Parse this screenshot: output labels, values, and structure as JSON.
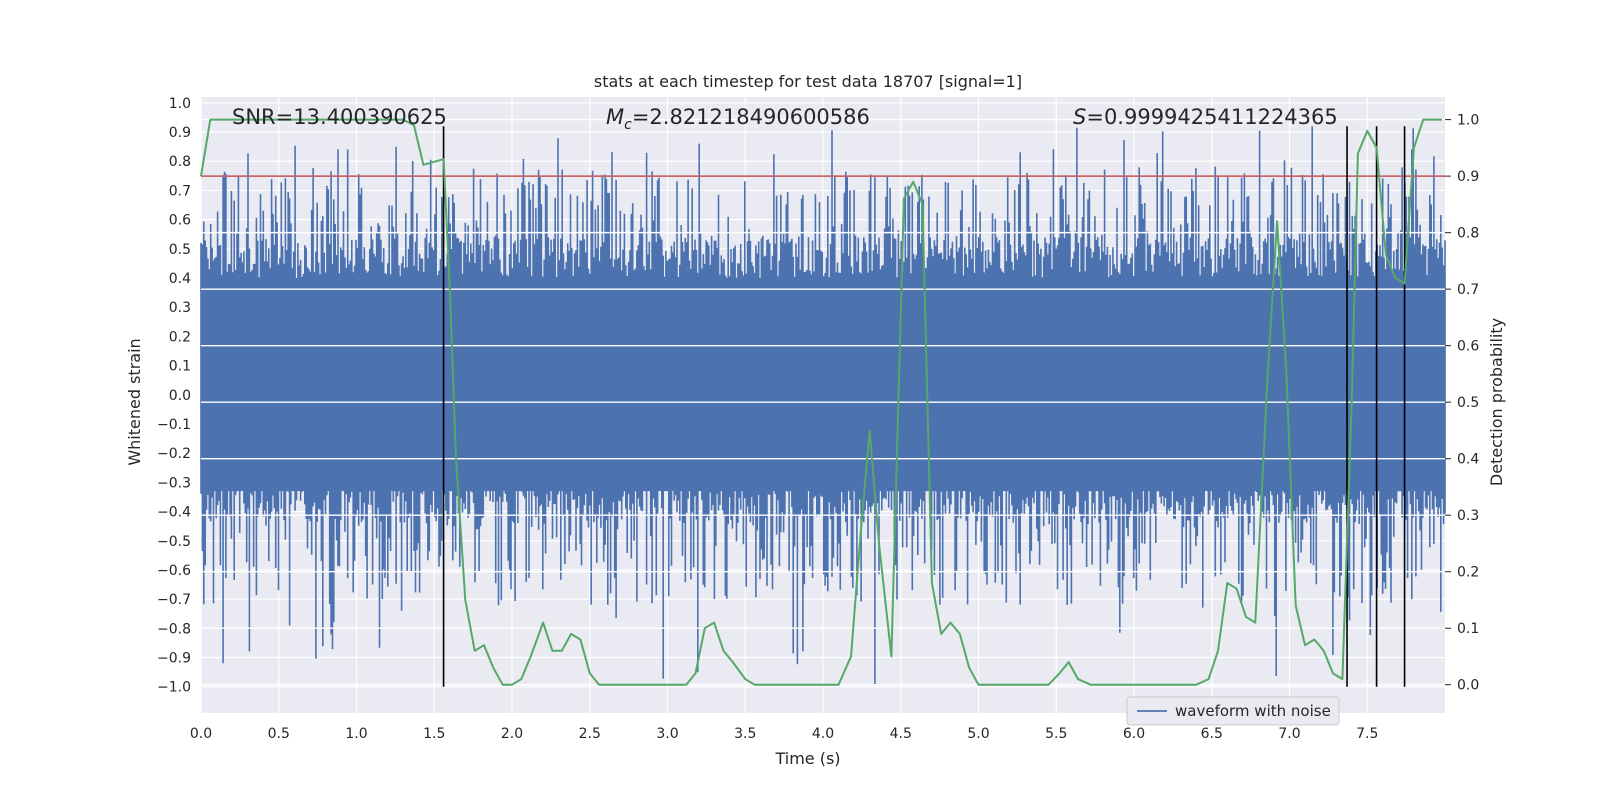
{
  "chart_data": {
    "type": "line",
    "title": "stats at each timestep for test data 18707 [signal=1]",
    "xlabel": "Time (s)",
    "ylabel_left": "Whitened strain",
    "ylabel_right": "Detection probability",
    "xlim": [
      0.0,
      8.0
    ],
    "ylim_left": [
      -1.09,
      1.02
    ],
    "ylim_right": [
      -0.05,
      1.04
    ],
    "x_ticks": [
      0.0,
      0.5,
      1.0,
      1.5,
      2.0,
      2.5,
      3.0,
      3.5,
      4.0,
      4.5,
      5.0,
      5.5,
      6.0,
      6.5,
      7.0,
      7.5
    ],
    "x_tick_labels": [
      "0.0",
      "0.5",
      "1.0",
      "1.5",
      "2.0",
      "2.5",
      "3.0",
      "3.5",
      "4.0",
      "4.5",
      "5.0",
      "5.5",
      "6.0",
      "6.5",
      "7.0",
      "7.5"
    ],
    "y_left_ticks": [
      -1.0,
      -0.9,
      -0.8,
      -0.7,
      -0.6,
      -0.5,
      -0.4,
      -0.3,
      -0.2,
      -0.1,
      0.0,
      0.1,
      0.2,
      0.3,
      0.4,
      0.5,
      0.6,
      0.7,
      0.8,
      0.9,
      1.0
    ],
    "y_left_tick_labels": [
      "−1.0",
      "−0.9",
      "−0.8",
      "−0.7",
      "−0.6",
      "−0.5",
      "−0.4",
      "−0.3",
      "−0.2",
      "−0.1",
      "0.0",
      "0.1",
      "0.2",
      "0.3",
      "0.4",
      "0.5",
      "0.6",
      "0.7",
      "0.8",
      "0.9",
      "1.0"
    ],
    "y_right_ticks": [
      0.0,
      0.1,
      0.2,
      0.3,
      0.4,
      0.5,
      0.6,
      0.7,
      0.8,
      0.9,
      1.0
    ],
    "y_right_tick_labels": [
      "0.0",
      "0.1",
      "0.2",
      "0.3",
      "0.4",
      "0.5",
      "0.6",
      "0.7",
      "0.8",
      "0.9",
      "1.0"
    ],
    "grid": true,
    "legend": {
      "entries": [
        "waveform with noise"
      ],
      "placement": "lower-right"
    },
    "annotations": {
      "snr_label": "SNR=13.400390625",
      "mc_symbol": "M",
      "mc_subscript": "c",
      "mc_value": "=2.821218490600586",
      "s_symbol": "S",
      "s_value": "=0.9999425411224365"
    },
    "threshold_right": 0.9,
    "vertical_markers_x": [
      1.56,
      7.37,
      7.56,
      7.74
    ],
    "vertical_markers_range_left": [
      -1.0,
      0.92
    ],
    "series": [
      {
        "name": "waveform with noise",
        "axis": "left",
        "color": "#4c72b0",
        "kind": "noise-band",
        "band_limits": [
          -0.42,
          0.52
        ],
        "x_range": [
          0.0,
          8.0
        ],
        "n_samples": 900,
        "spike_range": [
          -1.0,
          0.92
        ]
      },
      {
        "axis": "right",
        "color": "#55a868",
        "x": [
          0.0,
          0.06,
          0.3,
          0.6,
          0.9,
          1.2,
          1.3,
          1.37,
          1.43,
          1.56,
          1.6,
          1.64,
          1.7,
          1.76,
          1.82,
          1.88,
          1.94,
          2.0,
          2.06,
          2.12,
          2.2,
          2.26,
          2.32,
          2.38,
          2.44,
          2.5,
          2.56,
          2.65,
          2.8,
          3.0,
          3.12,
          3.18,
          3.24,
          3.3,
          3.36,
          3.42,
          3.5,
          3.56,
          3.64,
          3.72,
          3.8,
          3.9,
          4.0,
          4.1,
          4.18,
          4.24,
          4.3,
          4.36,
          4.44,
          4.52,
          4.58,
          4.64,
          4.7,
          4.76,
          4.82,
          4.88,
          4.94,
          5.0,
          5.1,
          5.3,
          5.45,
          5.52,
          5.58,
          5.64,
          5.72,
          5.8,
          5.9,
          6.2,
          6.4,
          6.48,
          6.54,
          6.6,
          6.66,
          6.72,
          6.78,
          6.86,
          6.92,
          6.98,
          7.04,
          7.1,
          7.16,
          7.22,
          7.28,
          7.34,
          7.4,
          7.44,
          7.5,
          7.56,
          7.62,
          7.68,
          7.74,
          7.8,
          7.86,
          7.92,
          7.98
        ],
        "y": [
          0.9,
          1.0,
          1.0,
          1.0,
          1.0,
          1.0,
          1.0,
          0.99,
          0.92,
          0.93,
          0.7,
          0.4,
          0.15,
          0.06,
          0.07,
          0.03,
          0.0,
          0.0,
          0.01,
          0.05,
          0.11,
          0.06,
          0.06,
          0.09,
          0.08,
          0.02,
          0.0,
          0.0,
          0.0,
          0.0,
          0.0,
          0.02,
          0.1,
          0.11,
          0.06,
          0.04,
          0.01,
          0.0,
          0.0,
          0.0,
          0.0,
          0.0,
          0.0,
          0.0,
          0.05,
          0.26,
          0.45,
          0.25,
          0.05,
          0.86,
          0.89,
          0.85,
          0.18,
          0.09,
          0.11,
          0.09,
          0.03,
          0.0,
          0.0,
          0.0,
          0.0,
          0.02,
          0.04,
          0.01,
          0.0,
          0.0,
          0.0,
          0.0,
          0.0,
          0.01,
          0.06,
          0.18,
          0.17,
          0.12,
          0.11,
          0.55,
          0.82,
          0.55,
          0.14,
          0.07,
          0.08,
          0.06,
          0.02,
          0.01,
          0.5,
          0.94,
          0.98,
          0.95,
          0.76,
          0.72,
          0.71,
          0.95,
          1.0,
          1.0,
          1.0
        ]
      }
    ]
  }
}
